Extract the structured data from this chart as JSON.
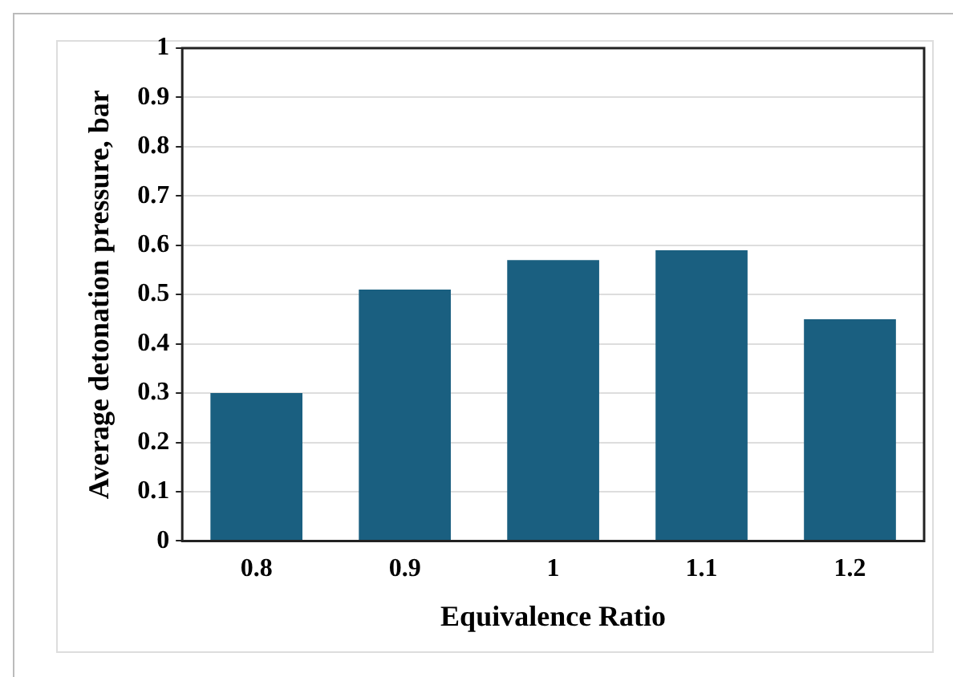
{
  "chart_data": {
    "type": "bar",
    "xlabel": "Equivalence Ratio",
    "ylabel": "Average detonation pressure, bar",
    "categories": [
      "0.8",
      "0.9",
      "1",
      "1.1",
      "1.2"
    ],
    "values": [
      0.3,
      0.51,
      0.57,
      0.59,
      0.45
    ],
    "color": "#1a5f80",
    "ylim": [
      0,
      1
    ],
    "yticks": [
      0,
      0.1,
      0.2,
      0.3,
      0.4,
      0.5,
      0.6,
      0.7,
      0.8,
      0.9,
      1
    ],
    "grid": "y",
    "legend": false
  }
}
